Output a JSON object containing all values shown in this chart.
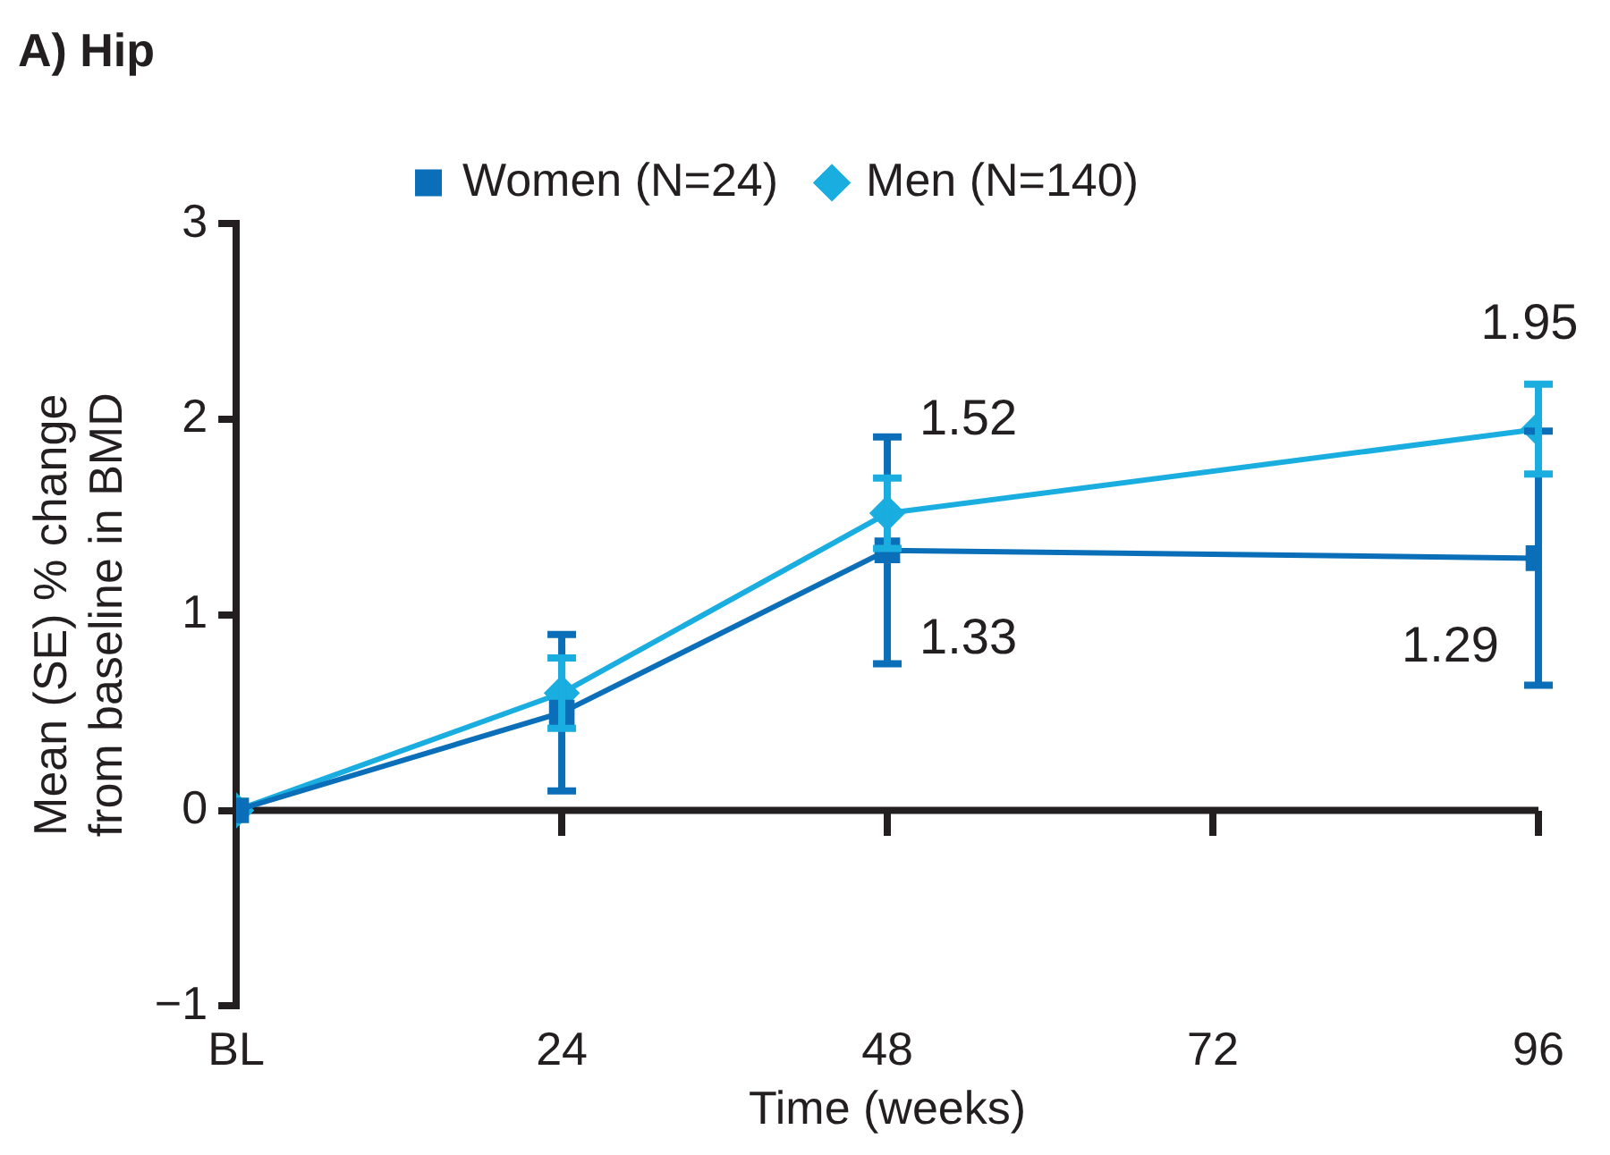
{
  "chart_data": {
    "type": "line",
    "title": "A) Hip",
    "xlabel": "Time (weeks)",
    "ylabel": "Mean (SE) % change\nfrom baseline in BMD",
    "xlim": [
      0,
      96
    ],
    "xticks": [
      {
        "value": 0,
        "label": "BL"
      },
      24,
      48,
      72,
      96
    ],
    "ylim": [
      -1,
      3
    ],
    "yticks": [
      {
        "value": -1,
        "label": "−1"
      },
      0,
      1,
      2,
      3
    ],
    "grid": false,
    "legend": "top",
    "ref_lines": [
      {
        "axis": "y",
        "value": 0,
        "color": "#231f20"
      }
    ],
    "series": [
      {
        "name": "Women (N=24)",
        "color": "#0a6fb8",
        "marker": "square",
        "x": [
          0,
          24,
          48,
          96
        ],
        "values": [
          0,
          0.5,
          1.33,
          1.29
        ],
        "errors": [
          null,
          0.4,
          0.58,
          0.65
        ],
        "value_labels": [
          null,
          null,
          "1.33",
          "1.29"
        ]
      },
      {
        "name": "Men (N=140)",
        "color": "#1aaee0",
        "marker": "diamond",
        "x": [
          0,
          24,
          48,
          96
        ],
        "values": [
          0,
          0.6,
          1.52,
          1.95
        ],
        "errors": [
          null,
          0.18,
          0.18,
          0.23
        ],
        "value_labels": [
          null,
          null,
          "1.52",
          "1.95"
        ]
      }
    ]
  }
}
